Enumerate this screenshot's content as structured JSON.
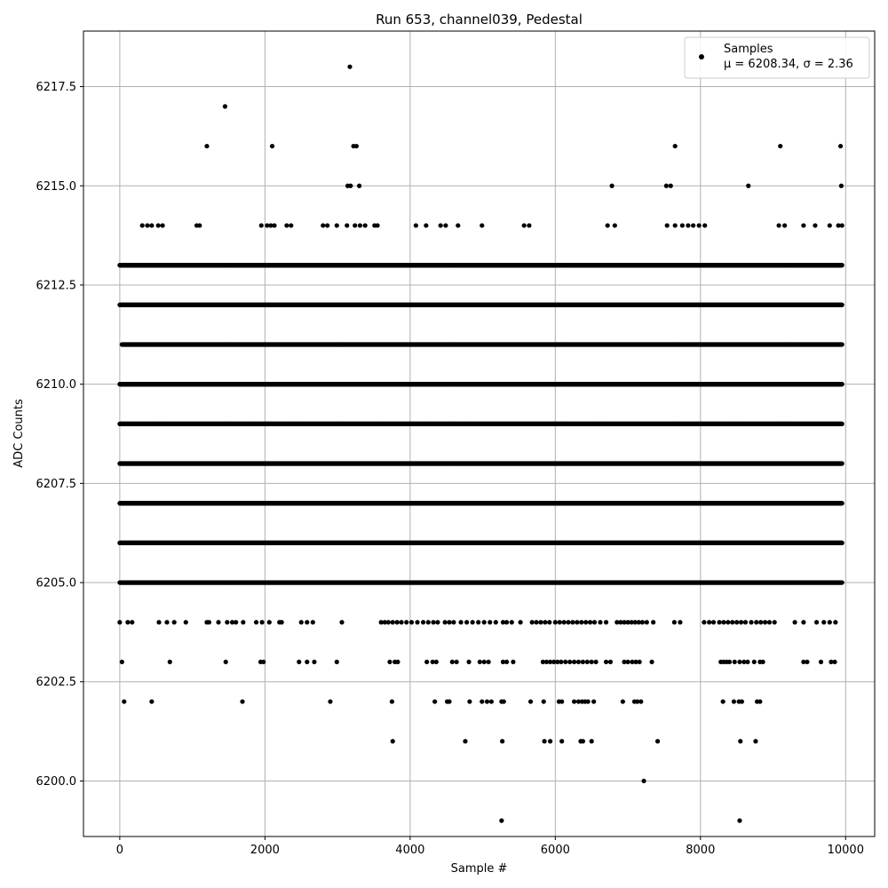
{
  "chart_data": {
    "type": "scatter",
    "title": "Run 653, channel039, Pedestal",
    "xlabel": "Sample #",
    "ylabel": "ADC Counts",
    "xlim": [
      -500,
      10400
    ],
    "ylim": [
      6198.6,
      6218.9
    ],
    "xticks": [
      0,
      2000,
      4000,
      6000,
      8000,
      10000
    ],
    "xtick_labels": [
      "0",
      "2000",
      "4000",
      "6000",
      "8000",
      "10000"
    ],
    "yticks": [
      6200.0,
      6202.5,
      6205.0,
      6207.5,
      6210.0,
      6212.5,
      6215.0,
      6217.5
    ],
    "ytick_labels": [
      "6200.0",
      "6202.5",
      "6205.0",
      "6207.5",
      "6210.0",
      "6212.5",
      "6215.0",
      "6217.5"
    ],
    "grid": true,
    "legend_position": "top-right",
    "series": [
      {
        "name": "Samples",
        "label_line2": "μ = 6208.34, σ = 2.36",
        "color": "#000000",
        "bands": [
          {
            "y": 6206,
            "x_from": 0,
            "x_to": 9950
          },
          {
            "y": 6207,
            "x_from": 0,
            "x_to": 9950
          },
          {
            "y": 6208,
            "x_from": 0,
            "x_to": 9950
          },
          {
            "y": 6209,
            "x_from": 0,
            "x_to": 9950
          },
          {
            "y": 6210,
            "x_from": 0,
            "x_to": 9950
          },
          {
            "y": 6211,
            "x_from": 30,
            "x_to": 9950
          },
          {
            "y": 6205,
            "x_from": 0,
            "x_to": 9950
          },
          {
            "y": 6212,
            "x_from": 0,
            "x_to": 9950
          },
          {
            "y": 6213,
            "x_from": 0,
            "x_to": 9950
          }
        ],
        "points": [
          [
            3170,
            6218
          ],
          [
            1450,
            6217
          ],
          [
            1200,
            6216
          ],
          [
            2100,
            6216
          ],
          [
            3220,
            6216
          ],
          [
            3260,
            6216
          ],
          [
            7650,
            6216
          ],
          [
            9100,
            6216
          ],
          [
            9930,
            6216
          ],
          [
            3140,
            6215
          ],
          [
            3180,
            6215
          ],
          [
            3300,
            6215
          ],
          [
            6780,
            6215
          ],
          [
            7530,
            6215
          ],
          [
            7590,
            6215
          ],
          [
            8660,
            6215
          ],
          [
            9940,
            6215
          ],
          [
            310,
            6214
          ],
          [
            380,
            6214
          ],
          [
            440,
            6214
          ],
          [
            530,
            6214
          ],
          [
            590,
            6214
          ],
          [
            1060,
            6214
          ],
          [
            1100,
            6214
          ],
          [
            1950,
            6214
          ],
          [
            2030,
            6214
          ],
          [
            2080,
            6214
          ],
          [
            2130,
            6214
          ],
          [
            2300,
            6214
          ],
          [
            2360,
            6214
          ],
          [
            2800,
            6214
          ],
          [
            2860,
            6214
          ],
          [
            2990,
            6214
          ],
          [
            3130,
            6214
          ],
          [
            3240,
            6214
          ],
          [
            3310,
            6214
          ],
          [
            3380,
            6214
          ],
          [
            3510,
            6214
          ],
          [
            3550,
            6214
          ],
          [
            4080,
            6214
          ],
          [
            4220,
            6214
          ],
          [
            4420,
            6214
          ],
          [
            4490,
            6214
          ],
          [
            4660,
            6214
          ],
          [
            4990,
            6214
          ],
          [
            5570,
            6214
          ],
          [
            5640,
            6214
          ],
          [
            6720,
            6214
          ],
          [
            6820,
            6214
          ],
          [
            7540,
            6214
          ],
          [
            7650,
            6214
          ],
          [
            7750,
            6214
          ],
          [
            7830,
            6214
          ],
          [
            7900,
            6214
          ],
          [
            7980,
            6214
          ],
          [
            8060,
            6214
          ],
          [
            9080,
            6214
          ],
          [
            9160,
            6214
          ],
          [
            9420,
            6214
          ],
          [
            9580,
            6214
          ],
          [
            9780,
            6214
          ],
          [
            9900,
            6214
          ],
          [
            9950,
            6214
          ],
          [
            0,
            6204
          ],
          [
            110,
            6204
          ],
          [
            170,
            6204
          ],
          [
            540,
            6204
          ],
          [
            650,
            6204
          ],
          [
            750,
            6204
          ],
          [
            910,
            6204
          ],
          [
            1200,
            6204
          ],
          [
            1230,
            6204
          ],
          [
            1360,
            6204
          ],
          [
            1480,
            6204
          ],
          [
            1550,
            6204
          ],
          [
            1600,
            6204
          ],
          [
            1700,
            6204
          ],
          [
            1880,
            6204
          ],
          [
            1960,
            6204
          ],
          [
            2060,
            6204
          ],
          [
            2200,
            6204
          ],
          [
            2230,
            6204
          ],
          [
            2500,
            6204
          ],
          [
            2580,
            6204
          ],
          [
            2660,
            6204
          ],
          [
            3060,
            6204
          ],
          [
            3600,
            6204
          ],
          [
            3650,
            6204
          ],
          [
            3700,
            6204
          ],
          [
            3760,
            6204
          ],
          [
            3820,
            6204
          ],
          [
            3880,
            6204
          ],
          [
            3950,
            6204
          ],
          [
            4020,
            6204
          ],
          [
            4100,
            6204
          ],
          [
            4180,
            6204
          ],
          [
            4250,
            6204
          ],
          [
            4320,
            6204
          ],
          [
            4380,
            6204
          ],
          [
            4480,
            6204
          ],
          [
            4540,
            6204
          ],
          [
            4600,
            6204
          ],
          [
            4700,
            6204
          ],
          [
            4780,
            6204
          ],
          [
            4860,
            6204
          ],
          [
            4940,
            6204
          ],
          [
            5020,
            6204
          ],
          [
            5100,
            6204
          ],
          [
            5180,
            6204
          ],
          [
            5280,
            6204
          ],
          [
            5330,
            6204
          ],
          [
            5400,
            6204
          ],
          [
            5520,
            6204
          ],
          [
            5680,
            6204
          ],
          [
            5740,
            6204
          ],
          [
            5800,
            6204
          ],
          [
            5860,
            6204
          ],
          [
            5920,
            6204
          ],
          [
            6000,
            6204
          ],
          [
            6060,
            6204
          ],
          [
            6120,
            6204
          ],
          [
            6180,
            6204
          ],
          [
            6240,
            6204
          ],
          [
            6300,
            6204
          ],
          [
            6360,
            6204
          ],
          [
            6420,
            6204
          ],
          [
            6480,
            6204
          ],
          [
            6540,
            6204
          ],
          [
            6620,
            6204
          ],
          [
            6700,
            6204
          ],
          [
            6850,
            6204
          ],
          [
            6900,
            6204
          ],
          [
            6950,
            6204
          ],
          [
            7000,
            6204
          ],
          [
            7050,
            6204
          ],
          [
            7100,
            6204
          ],
          [
            7150,
            6204
          ],
          [
            7200,
            6204
          ],
          [
            7260,
            6204
          ],
          [
            7350,
            6204
          ],
          [
            7640,
            6204
          ],
          [
            7720,
            6204
          ],
          [
            8050,
            6204
          ],
          [
            8120,
            6204
          ],
          [
            8180,
            6204
          ],
          [
            8260,
            6204
          ],
          [
            8320,
            6204
          ],
          [
            8380,
            6204
          ],
          [
            8440,
            6204
          ],
          [
            8500,
            6204
          ],
          [
            8560,
            6204
          ],
          [
            8620,
            6204
          ],
          [
            8700,
            6204
          ],
          [
            8770,
            6204
          ],
          [
            8830,
            6204
          ],
          [
            8890,
            6204
          ],
          [
            8950,
            6204
          ],
          [
            9020,
            6204
          ],
          [
            9300,
            6204
          ],
          [
            9420,
            6204
          ],
          [
            9600,
            6204
          ],
          [
            9700,
            6204
          ],
          [
            9780,
            6204
          ],
          [
            9860,
            6204
          ],
          [
            30,
            6203
          ],
          [
            690,
            6203
          ],
          [
            1460,
            6203
          ],
          [
            1940,
            6203
          ],
          [
            1980,
            6203
          ],
          [
            2470,
            6203
          ],
          [
            2580,
            6203
          ],
          [
            2680,
            6203
          ],
          [
            2990,
            6203
          ],
          [
            3720,
            6203
          ],
          [
            3790,
            6203
          ],
          [
            3830,
            6203
          ],
          [
            4230,
            6203
          ],
          [
            4310,
            6203
          ],
          [
            4360,
            6203
          ],
          [
            4580,
            6203
          ],
          [
            4640,
            6203
          ],
          [
            4810,
            6203
          ],
          [
            4960,
            6203
          ],
          [
            5020,
            6203
          ],
          [
            5080,
            6203
          ],
          [
            5280,
            6203
          ],
          [
            5330,
            6203
          ],
          [
            5420,
            6203
          ],
          [
            5830,
            6203
          ],
          [
            5880,
            6203
          ],
          [
            5930,
            6203
          ],
          [
            5980,
            6203
          ],
          [
            6030,
            6203
          ],
          [
            6080,
            6203
          ],
          [
            6140,
            6203
          ],
          [
            6200,
            6203
          ],
          [
            6260,
            6203
          ],
          [
            6320,
            6203
          ],
          [
            6380,
            6203
          ],
          [
            6440,
            6203
          ],
          [
            6500,
            6203
          ],
          [
            6560,
            6203
          ],
          [
            6700,
            6203
          ],
          [
            6760,
            6203
          ],
          [
            6950,
            6203
          ],
          [
            7000,
            6203
          ],
          [
            7060,
            6203
          ],
          [
            7110,
            6203
          ],
          [
            7160,
            6203
          ],
          [
            7330,
            6203
          ],
          [
            8280,
            6203
          ],
          [
            8320,
            6203
          ],
          [
            8360,
            6203
          ],
          [
            8400,
            6203
          ],
          [
            8470,
            6203
          ],
          [
            8540,
            6203
          ],
          [
            8600,
            6203
          ],
          [
            8650,
            6203
          ],
          [
            8740,
            6203
          ],
          [
            8820,
            6203
          ],
          [
            8860,
            6203
          ],
          [
            9420,
            6203
          ],
          [
            9470,
            6203
          ],
          [
            9660,
            6203
          ],
          [
            9800,
            6203
          ],
          [
            9850,
            6203
          ],
          [
            60,
            6202
          ],
          [
            440,
            6202
          ],
          [
            1690,
            6202
          ],
          [
            2900,
            6202
          ],
          [
            3750,
            6202
          ],
          [
            4340,
            6202
          ],
          [
            4510,
            6202
          ],
          [
            4540,
            6202
          ],
          [
            4820,
            6202
          ],
          [
            4990,
            6202
          ],
          [
            5060,
            6202
          ],
          [
            5120,
            6202
          ],
          [
            5260,
            6202
          ],
          [
            5290,
            6202
          ],
          [
            5660,
            6202
          ],
          [
            5840,
            6202
          ],
          [
            6050,
            6202
          ],
          [
            6090,
            6202
          ],
          [
            6260,
            6202
          ],
          [
            6320,
            6202
          ],
          [
            6370,
            6202
          ],
          [
            6410,
            6202
          ],
          [
            6450,
            6202
          ],
          [
            6530,
            6202
          ],
          [
            6930,
            6202
          ],
          [
            7090,
            6202
          ],
          [
            7130,
            6202
          ],
          [
            7180,
            6202
          ],
          [
            8310,
            6202
          ],
          [
            8460,
            6202
          ],
          [
            8530,
            6202
          ],
          [
            8570,
            6202
          ],
          [
            8780,
            6202
          ],
          [
            8820,
            6202
          ],
          [
            3760,
            6201
          ],
          [
            4760,
            6201
          ],
          [
            5270,
            6201
          ],
          [
            5850,
            6201
          ],
          [
            5930,
            6201
          ],
          [
            6090,
            6201
          ],
          [
            6350,
            6201
          ],
          [
            6380,
            6201
          ],
          [
            6500,
            6201
          ],
          [
            7410,
            6201
          ],
          [
            8550,
            6201
          ],
          [
            8760,
            6201
          ],
          [
            7220,
            6200
          ],
          [
            5260,
            6199
          ],
          [
            8540,
            6199
          ]
        ]
      }
    ]
  }
}
